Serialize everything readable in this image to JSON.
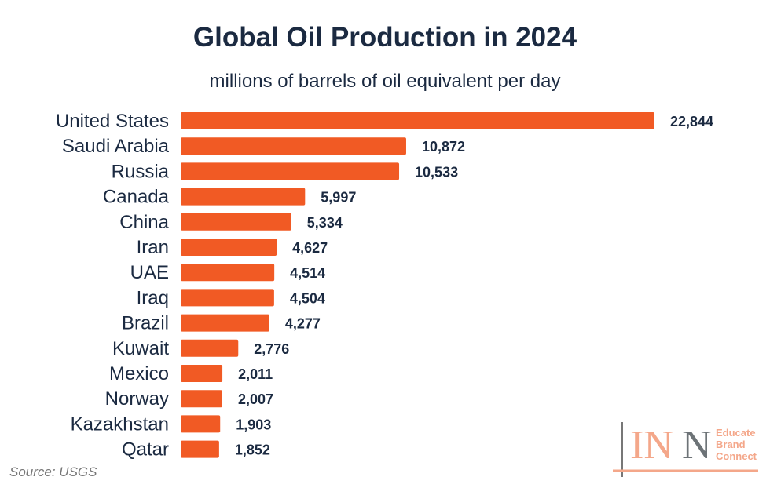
{
  "chart_data": {
    "type": "bar",
    "orientation": "horizontal",
    "title": "Global Oil Production in 2024",
    "subtitle": "millions of barrels of oil equivalent per day",
    "categories": [
      "United States",
      "Saudi Arabia",
      "Russia",
      "Canada",
      "China",
      "Iran",
      "UAE",
      "Iraq",
      "Brazil",
      "Kuwait",
      "Mexico",
      "Norway",
      "Kazakhstan",
      "Qatar"
    ],
    "values": [
      22844,
      10872,
      10533,
      5997,
      5334,
      4627,
      4514,
      4504,
      4277,
      2776,
      2011,
      2007,
      1903,
      1852
    ],
    "value_labels": [
      "22,844",
      "10,872",
      "10,533",
      "5,997",
      "5,334",
      "4,627",
      "4,514",
      "4,504",
      "4,277",
      "2,776",
      "2,011",
      "2,007",
      "1,903",
      "1,852"
    ],
    "bar_color": "#F15A24",
    "grid": false
  },
  "source": "Source: USGS",
  "logo": {
    "text": "INN",
    "tagline": [
      "Educate",
      "Brand",
      "Connect"
    ]
  }
}
